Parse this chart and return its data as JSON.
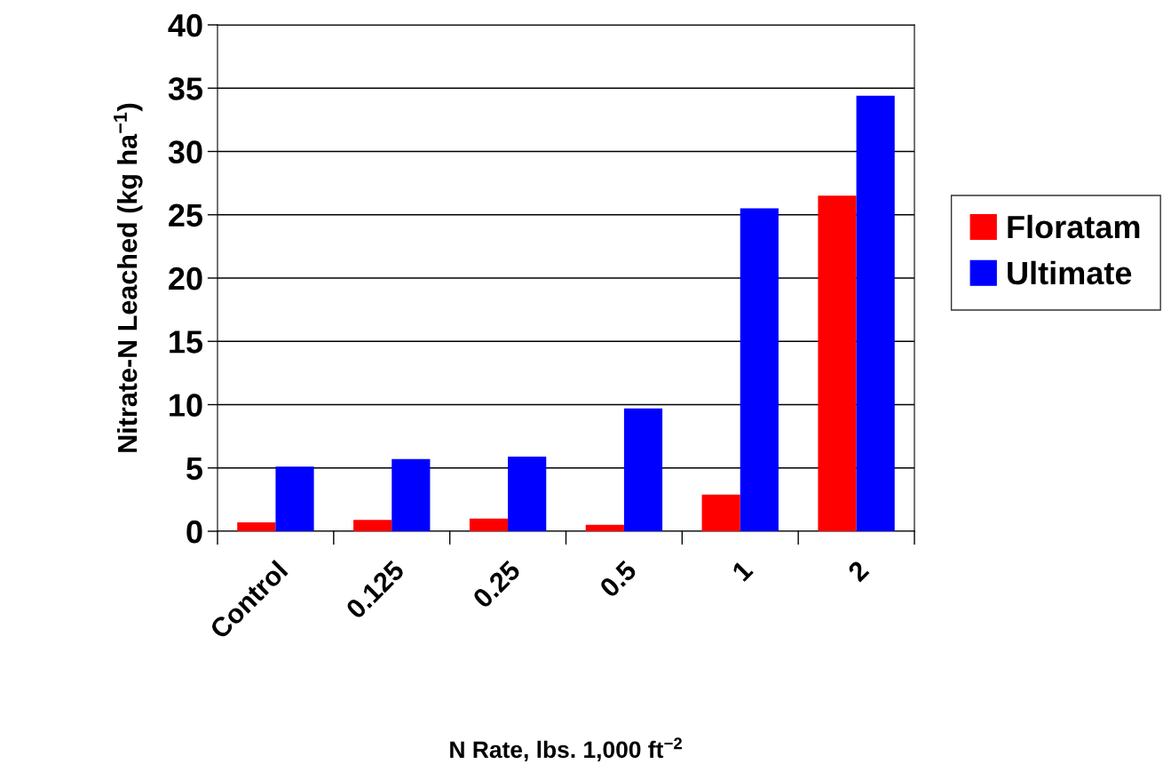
{
  "chart_data": {
    "type": "bar",
    "categories": [
      "Control",
      "0.125",
      "0.25",
      "0.5",
      "1",
      "2"
    ],
    "series": [
      {
        "name": "Floratam",
        "color": "#ff0000",
        "values": [
          0.7,
          0.9,
          1.0,
          0.5,
          2.9,
          26.5
        ]
      },
      {
        "name": "Ultimate",
        "color": "#0000ff",
        "values": [
          5.1,
          5.7,
          5.9,
          9.7,
          25.5,
          34.4
        ]
      }
    ],
    "xlabel": "N Rate, lbs. 1,000 ft$^{−2}$",
    "ylabel": "Nitrate-N Leached (kg ha$^{−1}$)",
    "ylim": [
      0,
      40
    ],
    "yticks": [
      0,
      5,
      10,
      15,
      20,
      25,
      30,
      35,
      40
    ],
    "grid": "y",
    "legend": "right"
  }
}
